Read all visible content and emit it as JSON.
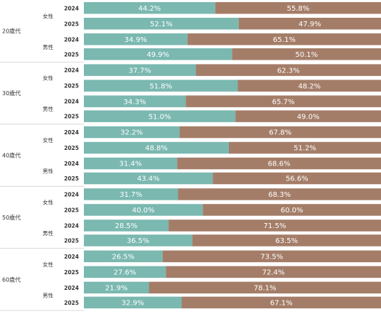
{
  "chart_data": {
    "type": "bar",
    "stacked": true,
    "orientation": "horizontal",
    "normalized_percent": true,
    "colors": {
      "series_a": "#7ab8b0",
      "series_b": "#a47d68"
    },
    "groups": [
      {
        "age": "20歳代",
        "rows": [
          {
            "gender": "女性",
            "year": "2024",
            "a": 44.2,
            "b": 55.8,
            "a_label": "44.2%",
            "b_label": "55.8%"
          },
          {
            "gender": "女性",
            "year": "2025",
            "a": 52.1,
            "b": 47.9,
            "a_label": "52.1%",
            "b_label": "47.9%"
          },
          {
            "gender": "男性",
            "year": "2024",
            "a": 34.9,
            "b": 65.1,
            "a_label": "34.9%",
            "b_label": "65.1%"
          },
          {
            "gender": "男性",
            "year": "2025",
            "a": 49.9,
            "b": 50.1,
            "a_label": "49.9%",
            "b_label": "50.1%"
          }
        ]
      },
      {
        "age": "30歳代",
        "rows": [
          {
            "gender": "女性",
            "year": "2024",
            "a": 37.7,
            "b": 62.3,
            "a_label": "37.7%",
            "b_label": "62.3%"
          },
          {
            "gender": "女性",
            "year": "2025",
            "a": 51.8,
            "b": 48.2,
            "a_label": "51.8%",
            "b_label": "48.2%"
          },
          {
            "gender": "男性",
            "year": "2024",
            "a": 34.3,
            "b": 65.7,
            "a_label": "34.3%",
            "b_label": "65.7%"
          },
          {
            "gender": "男性",
            "year": "2025",
            "a": 51.0,
            "b": 49.0,
            "a_label": "51.0%",
            "b_label": "49.0%"
          }
        ]
      },
      {
        "age": "40歳代",
        "rows": [
          {
            "gender": "女性",
            "year": "2024",
            "a": 32.2,
            "b": 67.8,
            "a_label": "32.2%",
            "b_label": "67.8%"
          },
          {
            "gender": "女性",
            "year": "2025",
            "a": 48.8,
            "b": 51.2,
            "a_label": "48.8%",
            "b_label": "51.2%"
          },
          {
            "gender": "男性",
            "year": "2024",
            "a": 31.4,
            "b": 68.6,
            "a_label": "31.4%",
            "b_label": "68.6%"
          },
          {
            "gender": "男性",
            "year": "2025",
            "a": 43.4,
            "b": 56.6,
            "a_label": "43.4%",
            "b_label": "56.6%"
          }
        ]
      },
      {
        "age": "50歳代",
        "rows": [
          {
            "gender": "女性",
            "year": "2024",
            "a": 31.7,
            "b": 68.3,
            "a_label": "31.7%",
            "b_label": "68.3%"
          },
          {
            "gender": "女性",
            "year": "2025",
            "a": 40.0,
            "b": 60.0,
            "a_label": "40.0%",
            "b_label": "60.0%"
          },
          {
            "gender": "男性",
            "year": "2024",
            "a": 28.5,
            "b": 71.5,
            "a_label": "28.5%",
            "b_label": "71.5%"
          },
          {
            "gender": "男性",
            "year": "2025",
            "a": 36.5,
            "b": 63.5,
            "a_label": "36.5%",
            "b_label": "63.5%"
          }
        ]
      },
      {
        "age": "60歳代",
        "rows": [
          {
            "gender": "女性",
            "year": "2024",
            "a": 26.5,
            "b": 73.5,
            "a_label": "26.5%",
            "b_label": "73.5%"
          },
          {
            "gender": "女性",
            "year": "2025",
            "a": 27.6,
            "b": 72.4,
            "a_label": "27.6%",
            "b_label": "72.4%"
          },
          {
            "gender": "男性",
            "year": "2024",
            "a": 21.9,
            "b": 78.1,
            "a_label": "21.9%",
            "b_label": "78.1%"
          },
          {
            "gender": "男性",
            "year": "2025",
            "a": 32.9,
            "b": 67.1,
            "a_label": "32.9%",
            "b_label": "67.1%"
          }
        ]
      }
    ]
  }
}
